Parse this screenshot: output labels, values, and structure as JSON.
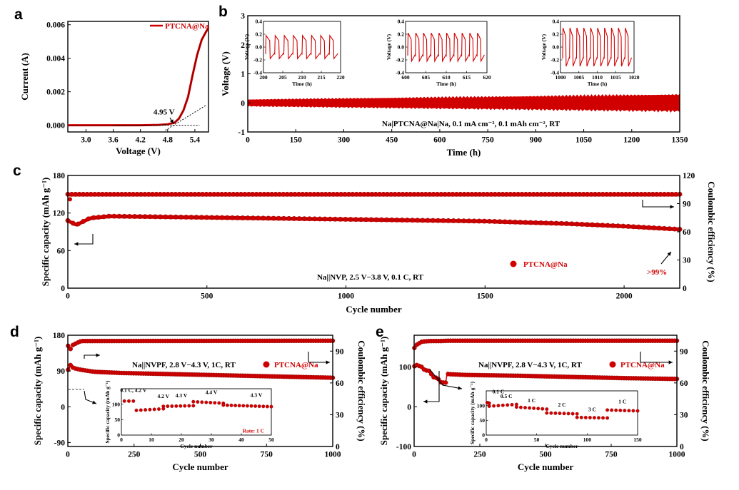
{
  "colors": {
    "series": "#d10000",
    "axis": "#000000"
  },
  "panels": {
    "a": "a",
    "b": "b",
    "c": "c",
    "d": "d",
    "e": "e"
  },
  "chart_data": [
    {
      "id": "a",
      "type": "line",
      "xlabel": "Voltage (V)",
      "ylabel": "Current (A)",
      "xlim": [
        2.6,
        5.7
      ],
      "ylim": [
        -0.0004,
        0.0062
      ],
      "xticks": [
        "3.0",
        "3.6",
        "4.2",
        "4.8",
        "5.4"
      ],
      "xtickvals": [
        3.0,
        3.6,
        4.2,
        4.8,
        5.4
      ],
      "yticks": [
        "0.000",
        "0.002",
        "0.004",
        "0.006"
      ],
      "ytickvals": [
        0,
        0.002,
        0.004,
        0.006
      ],
      "legend": "PTCNA@Na",
      "annotation": "4.95 V",
      "series": [
        {
          "name": "PTCNA@Na",
          "x": [
            2.6,
            3.0,
            3.6,
            4.2,
            4.6,
            4.8,
            4.95,
            5.05,
            5.15,
            5.25,
            5.35,
            5.45,
            5.55,
            5.65,
            5.7
          ],
          "y": [
            0,
            0,
            0,
            0,
            2e-05,
            6e-05,
            0.00015,
            0.0004,
            0.0009,
            0.0017,
            0.003,
            0.0042,
            0.0051,
            0.0056,
            0.0058
          ]
        }
      ]
    },
    {
      "id": "b",
      "type": "line",
      "xlabel": "Time (h)",
      "ylabel": "Voltage (V)",
      "xlim": [
        0,
        1350
      ],
      "ylim": [
        -1,
        3
      ],
      "xticks": [
        "0",
        "150",
        "300",
        "450",
        "600",
        "750",
        "900",
        "1050",
        "1200",
        "1350"
      ],
      "xtickvals": [
        0,
        150,
        300,
        450,
        600,
        750,
        900,
        1050,
        1200,
        1350
      ],
      "yticks": [
        "-1",
        "0",
        "1",
        "2",
        "3"
      ],
      "ytickvals": [
        -1,
        0,
        1,
        2,
        3
      ],
      "annotation": "Na|PTCNA@Na|Na, 0.1 mA cm⁻², 0.1 mAh cm⁻², RT",
      "band": {
        "start_amplitude": 0.12,
        "end_amplitude": 0.32
      },
      "insets": [
        {
          "xlabel": "Time (h)",
          "ylabel": "Voltage (V)",
          "xlim": [
            200,
            220
          ],
          "xticks": [
            "200",
            "205",
            "210",
            "215",
            "220"
          ],
          "yticks": [
            "-0.4",
            "-0.2",
            "0.0",
            "0.2",
            "0.4"
          ],
          "cycles": 8,
          "amplitude": 0.18
        },
        {
          "xlabel": "Time (h)",
          "ylabel": "Voltage (V)",
          "xlim": [
            600,
            620
          ],
          "xticks": [
            "600",
            "605",
            "610",
            "615",
            "620"
          ],
          "yticks": [
            "-0.4",
            "-0.2",
            "0.0",
            "0.2",
            "0.4"
          ],
          "cycles": 10,
          "amplitude": 0.22
        },
        {
          "xlabel": "Time (h)",
          "ylabel": "Voltage (V)",
          "xlim": [
            1000,
            1020
          ],
          "xticks": [
            "1000",
            "1005",
            "1010",
            "1015",
            "1020"
          ],
          "yticks": [
            "-0.4",
            "-0.2",
            "0.0",
            "0.2",
            "0.4"
          ],
          "cycles": 10,
          "amplitude": 0.3
        }
      ]
    },
    {
      "id": "c",
      "type": "scatter",
      "xlabel": "Cycle number",
      "ylabel": "Specific capacity (mAh g⁻¹)",
      "y2label": "Coulombic efficiency (%)",
      "xlim": [
        0,
        2200
      ],
      "ylim": [
        0,
        180
      ],
      "y2lim": [
        0,
        120
      ],
      "xticks": [
        "0",
        "500",
        "1000",
        "1500",
        "2000"
      ],
      "xtickvals": [
        0,
        500,
        1000,
        1500,
        2000
      ],
      "yticks": [
        "0",
        "60",
        "120",
        "180"
      ],
      "ytickvals": [
        0,
        60,
        120,
        180
      ],
      "y2ticks": [
        "0",
        "30",
        "60",
        "90",
        "120"
      ],
      "y2tickvals": [
        0,
        30,
        60,
        90,
        120
      ],
      "legend": "PTCNA@Na",
      "annotation": "Na||NVP, 2.5 V−3.8 V, 0.1 C, RT",
      "ce_label": ">99%",
      "capacity": {
        "x": [
          1,
          30,
          80,
          150,
          500,
          1000,
          1500,
          1800,
          2000,
          2200
        ],
        "y": [
          108,
          101,
          112,
          115,
          113,
          110,
          107,
          103,
          99,
          94
        ]
      },
      "efficiency": {
        "x": [
          0,
          2200
        ],
        "y": [
          100,
          100
        ]
      }
    },
    {
      "id": "d",
      "type": "scatter",
      "xlabel": "Cycle number",
      "ylabel": "Specific capacity (mAh g⁻¹)",
      "y2label": "Coulombic efficiency (%)",
      "xlim": [
        0,
        1000
      ],
      "ylim": [
        -100,
        180
      ],
      "y2lim": [
        0,
        105
      ],
      "xticks": [
        "0",
        "250",
        "500",
        "750",
        "1000"
      ],
      "xtickvals": [
        0,
        250,
        500,
        750,
        1000
      ],
      "yticks": [
        "-90",
        "0",
        "90",
        "180"
      ],
      "ytickvals": [
        -90,
        0,
        90,
        180
      ],
      "y2ticks": [
        "0",
        "30",
        "60",
        "90"
      ],
      "y2tickvals": [
        0,
        30,
        60,
        90
      ],
      "legend": "PTCNA@Na",
      "annotation": "Na||NVPF, 2.8 V−4.3 V, 1C, RT",
      "capacity": {
        "x": [
          1,
          10,
          20,
          30,
          50,
          100,
          200,
          400,
          600,
          800,
          1000
        ],
        "y": [
          93,
          105,
          98,
          96,
          93,
          88,
          85,
          82,
          79,
          76,
          73
        ]
      },
      "efficiency": {
        "x": [
          1,
          5,
          10,
          20,
          50,
          1000
        ],
        "y": [
          95,
          88,
          92,
          96,
          99.5,
          99.8
        ]
      },
      "inset": {
        "xlabel": "Cycle number",
        "ylabel": "Specific capacity (mAh g⁻¹)",
        "xlim": [
          0,
          50
        ],
        "xticks": [
          "0",
          "10",
          "20",
          "30",
          "40",
          "50"
        ],
        "yticks": [
          "0",
          "50",
          "100"
        ],
        "labels": [
          "0.1 C, 4.2 V",
          "4.2 V",
          "4.3 V",
          "4.4 V",
          "4.3 V"
        ],
        "rate": "Rate: 1 C",
        "segments": [
          {
            "x": [
              1,
              4
            ],
            "y": [
              110,
              110
            ]
          },
          {
            "x": [
              5,
              14
            ],
            "y": [
              80,
              85
            ]
          },
          {
            "x": [
              14,
              24
            ],
            "y": [
              93,
              95
            ]
          },
          {
            "x": [
              24,
              34
            ],
            "y": [
              108,
              103
            ]
          },
          {
            "x": [
              34,
              50
            ],
            "y": [
              97,
              92
            ]
          }
        ]
      }
    },
    {
      "id": "e",
      "type": "scatter",
      "xlabel": "Cycle number",
      "ylabel": "Specific capacity (mAh g⁻¹)",
      "y2label": "Coulombic efficiency (%)",
      "xlim": [
        0,
        1000
      ],
      "ylim": [
        -100,
        180
      ],
      "y2lim": [
        0,
        105
      ],
      "xticks": [
        "0",
        "250",
        "500",
        "750",
        "1000"
      ],
      "xtickvals": [
        0,
        250,
        500,
        750,
        1000
      ],
      "yticks": [
        "-100",
        "0",
        "100"
      ],
      "ytickvals": [
        -100,
        0,
        100
      ],
      "y2ticks": [
        "0",
        "30",
        "60",
        "90"
      ],
      "y2tickvals": [
        0,
        30,
        60,
        90
      ],
      "legend": "PTCNA@Na",
      "annotation": "Na||NVPF, 2.8 V−4.3 V, 1C, RT",
      "capacity": {
        "x": [
          1,
          10,
          30,
          40,
          60,
          70,
          90,
          100,
          120,
          125,
          130,
          200,
          400,
          600,
          800,
          1000
        ],
        "y": [
          102,
          105,
          100,
          92,
          90,
          75,
          72,
          62,
          60,
          85,
          82,
          80,
          78,
          75,
          72,
          70
        ]
      },
      "efficiency": {
        "x": [
          1,
          10,
          30,
          60,
          100,
          130,
          1000
        ],
        "y": [
          93,
          96,
          99,
          99.5,
          99.5,
          99.8,
          99.8
        ]
      },
      "inset": {
        "xlabel": "Cycle number",
        "ylabel": "Specific capacity (mAh g⁻¹)",
        "xlim": [
          0,
          150
        ],
        "xticks": [
          "0",
          "50",
          "100",
          "150"
        ],
        "yticks": [
          "0",
          "50",
          "100"
        ],
        "labels": [
          "0.1 C",
          "0.5 C",
          "1 C",
          "2 C",
          "3 C",
          "1 C"
        ],
        "segments": [
          {
            "x": [
              1,
              3
            ],
            "y": [
              110,
              108
            ]
          },
          {
            "x": [
              3,
              30
            ],
            "y": [
              98,
              104
            ]
          },
          {
            "x": [
              30,
              60
            ],
            "y": [
              95,
              88
            ]
          },
          {
            "x": [
              60,
              90
            ],
            "y": [
              75,
              72
            ]
          },
          {
            "x": [
              90,
              120
            ],
            "y": [
              60,
              58
            ]
          },
          {
            "x": [
              120,
              150
            ],
            "y": [
              85,
              82
            ]
          }
        ]
      }
    }
  ]
}
